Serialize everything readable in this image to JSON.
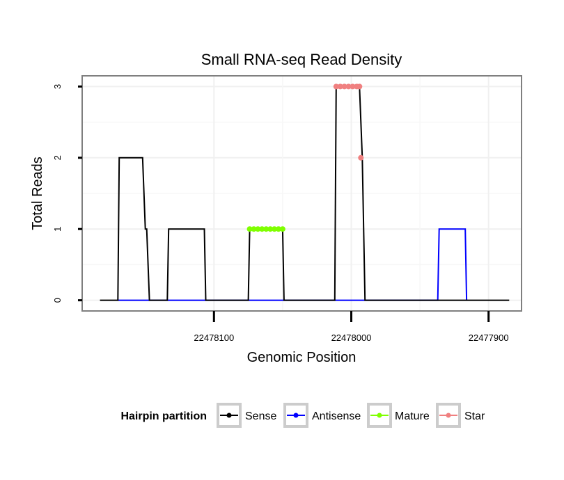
{
  "chart_data": {
    "type": "line",
    "title": "Small RNA-seq Read Density",
    "xlabel": "Genomic Position",
    "ylabel": "Total Reads",
    "xlim": [
      22478196,
      22477876
    ],
    "ylim": [
      -0.15,
      3.15
    ],
    "x_reversed": true,
    "x_ticks": [
      22478100,
      22478000,
      22477900
    ],
    "x_tick_labels": [
      "22478100",
      "22478000",
      "22477900"
    ],
    "y_ticks": [
      0,
      1,
      2,
      3
    ],
    "y_tick_labels": [
      "0",
      "1",
      "2",
      "3"
    ],
    "grid": true,
    "legend_position": "bottom",
    "legend_title": "Hairpin partition",
    "series": [
      {
        "name": "Sense",
        "color": "#000000",
        "points": [
          [
            22478183,
            0
          ],
          [
            22478170,
            0
          ],
          [
            22478169,
            2
          ],
          [
            22478152,
            2
          ],
          [
            22478150,
            1
          ],
          [
            22478149,
            1
          ],
          [
            22478147,
            0
          ],
          [
            22478134,
            0
          ],
          [
            22478133,
            1
          ],
          [
            22478107,
            1
          ],
          [
            22478106,
            0
          ],
          [
            22478075,
            0
          ],
          [
            22478074,
            1
          ],
          [
            22478050,
            1
          ],
          [
            22478049,
            0
          ],
          [
            22478012,
            0
          ],
          [
            22478011,
            3
          ],
          [
            22477994,
            3
          ],
          [
            22477992,
            2
          ],
          [
            22477990,
            0
          ],
          [
            22477885,
            0
          ]
        ]
      },
      {
        "name": "Antisense",
        "color": "#0000ff",
        "points": [
          [
            22478170,
            0
          ],
          [
            22478147,
            0
          ],
          [
            22478134,
            0
          ],
          [
            22478106,
            0
          ],
          [
            22478075,
            0
          ],
          [
            22478049,
            0
          ],
          [
            22478012,
            0
          ],
          [
            22477990,
            0
          ],
          [
            22477937,
            0
          ],
          [
            22477936,
            1
          ],
          [
            22477917,
            1
          ],
          [
            22477916,
            0
          ]
        ]
      },
      {
        "name": "Mature",
        "color": "#7fff00",
        "marker_points": [
          [
            22478074,
            1
          ],
          [
            22478071,
            1
          ],
          [
            22478068,
            1
          ],
          [
            22478065,
            1
          ],
          [
            22478062,
            1
          ],
          [
            22478059,
            1
          ],
          [
            22478056,
            1
          ],
          [
            22478053,
            1
          ],
          [
            22478050,
            1
          ]
        ]
      },
      {
        "name": "Star",
        "color": "#f08080",
        "marker_points": [
          [
            22478011,
            3
          ],
          [
            22478008,
            3
          ],
          [
            22478005,
            3
          ],
          [
            22478002,
            3
          ],
          [
            22477999,
            3
          ],
          [
            22477996,
            3
          ],
          [
            22477994,
            3
          ],
          [
            22477993,
            2
          ]
        ]
      }
    ]
  }
}
